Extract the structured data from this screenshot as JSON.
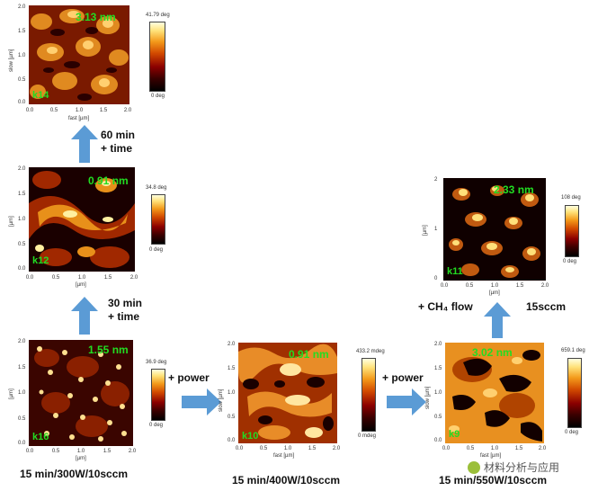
{
  "panels": {
    "k14": {
      "roughness": "3.13 nm",
      "sample": "k14",
      "cbar_max": "41.79 deg",
      "cbar_min": "0 deg",
      "xticks": [
        "0.0",
        "0.5",
        "1.0",
        "1.5",
        "2.0"
      ],
      "yticks": [
        "2.0",
        "1.5",
        "1.0",
        "0.5",
        "0.0"
      ],
      "xlabel": "fast [µm]",
      "ylabel": "slow [µm]"
    },
    "k12": {
      "roughness": "0.91 nm",
      "sample": "k12",
      "cbar_max": "34.8 deg",
      "cbar_min": "0 deg",
      "xticks": [
        "0.0",
        "0.5",
        "1.0",
        "1.5",
        "2.0"
      ],
      "yticks": [
        "2.0",
        "1.5",
        "1.0",
        "0.5",
        "0.0"
      ],
      "xlabel": "[µm]",
      "ylabel": "[µm]"
    },
    "k16": {
      "roughness": "1.55 nm",
      "sample": "k16",
      "cbar_max": "36.9 deg",
      "cbar_min": "0 deg",
      "xticks": [
        "0.0",
        "0.5",
        "1.0",
        "1.5",
        "2.0"
      ],
      "yticks": [
        "2.0",
        "1.5",
        "1.0",
        "0.5",
        "0.0"
      ],
      "xlabel": "[µm]",
      "ylabel": "[µm]"
    },
    "k10": {
      "roughness": "0.91 nm",
      "sample": "k10",
      "cbar_max": "433.2 mdeg",
      "cbar_min": "0 mdeg",
      "xticks": [
        "0.0",
        "0.5",
        "1.0",
        "1.5",
        "2.0"
      ],
      "yticks": [
        "2.0",
        "1.5",
        "1.0",
        "0.5",
        "0.0"
      ],
      "xlabel": "fast [µm]",
      "ylabel": "slow [µm]"
    },
    "k11": {
      "roughness": "2.33 nm",
      "sample": "k11",
      "cbar_max": "108 deg",
      "cbar_min": "0 deg",
      "xticks": [
        "0.0",
        "0.5",
        "1.0",
        "1.5",
        "2.0"
      ],
      "yticks": [
        "2",
        "1",
        "0"
      ],
      "xlabel": "[µm]",
      "ylabel": "[µm]"
    },
    "k9": {
      "roughness": "3.02 nm",
      "sample": "k9",
      "cbar_max": "659.1 deg",
      "cbar_min": "0 deg",
      "xticks": [
        "0.0",
        "0.5",
        "1.0",
        "1.5",
        "2.0"
      ],
      "yticks": [
        "2.0",
        "1.5",
        "1.0",
        "0.5",
        "0.0"
      ],
      "xlabel": "fast [µm]",
      "ylabel": "slow [µm]"
    }
  },
  "steps": {
    "sixty_min": "60 min",
    "plus_time_1": "+ time",
    "thirty_min": "30 min",
    "plus_time_2": "+ time",
    "plus_power_1": "+ power",
    "plus_power_2": "+ power",
    "ch4_flow": "+ CH₄ flow",
    "fifteen_sccm": "15sccm"
  },
  "captions": {
    "k16": "15 min/300W/10sccm",
    "k10": "15 min/400W/10sccm",
    "k9": "15 min/550W/10sccm"
  },
  "watermark": "材料分析与应用",
  "colors": {
    "arrow": "#5b9bd5",
    "label_green": "#22dd22"
  }
}
